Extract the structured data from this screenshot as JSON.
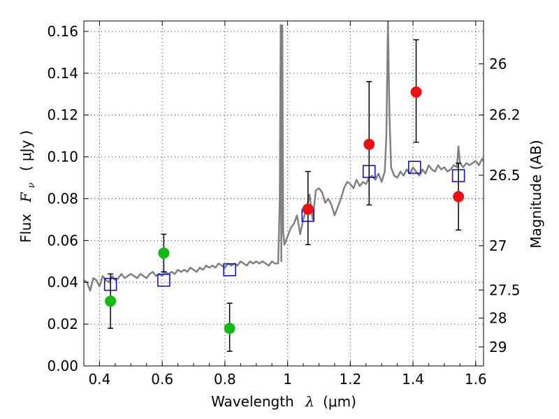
{
  "chart_data": {
    "type": "scatter",
    "title": "",
    "xlabel": "Wavelength",
    "xlabel_symbol": "λ",
    "xlabel_unit": "(μm)",
    "ylabel": "Flux",
    "ylabel_symbol": "F",
    "ylabel_sub": "ν",
    "ylabel_unit": "( μJy )",
    "y2label": "Magnitude (AB)",
    "xlim": [
      0.35,
      1.625
    ],
    "ylim": [
      0.0,
      0.165
    ],
    "grid": true,
    "x_ticks": [
      0.4,
      0.6,
      0.8,
      1.0,
      1.2,
      1.4,
      1.6
    ],
    "x_tick_labels": [
      "0.4",
      "0.6",
      "0.8",
      "1",
      "1.2",
      "1.4",
      "1.6"
    ],
    "y_ticks": [
      0.0,
      0.02,
      0.04,
      0.06,
      0.08,
      0.1,
      0.12,
      0.14,
      0.16
    ],
    "y_tick_labels": [
      "0.00",
      "0.02",
      "0.04",
      "0.06",
      "0.08",
      "0.10",
      "0.12",
      "0.14",
      "0.16"
    ],
    "y2_ticks": [
      {
        "flux": 0.1445,
        "label": "26"
      },
      {
        "flux": 0.12,
        "label": "26.2"
      },
      {
        "flux": 0.0912,
        "label": "26.5"
      },
      {
        "flux": 0.0575,
        "label": "27"
      },
      {
        "flux": 0.0363,
        "label": "27.5"
      },
      {
        "flux": 0.0229,
        "label": "28"
      },
      {
        "flux": 0.0091,
        "label": "29"
      }
    ],
    "colors": {
      "model": "#808080",
      "green": "#11bb11",
      "red": "#ee1111",
      "square": "#1111cc",
      "errorbar": "#000000"
    },
    "series": [
      {
        "name": "model spectrum",
        "type": "line",
        "x": [
          0.35,
          0.36,
          0.37,
          0.38,
          0.39,
          0.4,
          0.41,
          0.42,
          0.43,
          0.44,
          0.45,
          0.46,
          0.47,
          0.48,
          0.49,
          0.5,
          0.51,
          0.52,
          0.53,
          0.54,
          0.55,
          0.56,
          0.57,
          0.58,
          0.59,
          0.6,
          0.61,
          0.62,
          0.63,
          0.64,
          0.65,
          0.66,
          0.67,
          0.68,
          0.69,
          0.7,
          0.71,
          0.72,
          0.73,
          0.74,
          0.75,
          0.76,
          0.77,
          0.78,
          0.79,
          0.8,
          0.81,
          0.82,
          0.83,
          0.84,
          0.85,
          0.86,
          0.87,
          0.88,
          0.89,
          0.9,
          0.91,
          0.92,
          0.93,
          0.94,
          0.95,
          0.96,
          0.97,
          0.975,
          0.978,
          0.98,
          0.983,
          0.986,
          0.99,
          1.0,
          1.01,
          1.02,
          1.03,
          1.04,
          1.05,
          1.06,
          1.07,
          1.08,
          1.09,
          1.1,
          1.11,
          1.12,
          1.13,
          1.14,
          1.15,
          1.16,
          1.17,
          1.18,
          1.19,
          1.2,
          1.21,
          1.22,
          1.23,
          1.24,
          1.25,
          1.26,
          1.27,
          1.28,
          1.29,
          1.3,
          1.31,
          1.315,
          1.32,
          1.325,
          1.33,
          1.34,
          1.35,
          1.36,
          1.37,
          1.38,
          1.39,
          1.4,
          1.41,
          1.42,
          1.43,
          1.44,
          1.45,
          1.46,
          1.47,
          1.48,
          1.49,
          1.5,
          1.51,
          1.52,
          1.53,
          1.54,
          1.545,
          1.55,
          1.56,
          1.57,
          1.58,
          1.59,
          1.6,
          1.61,
          1.62,
          1.625
        ],
        "y": [
          0.041,
          0.04,
          0.036,
          0.042,
          0.041,
          0.038,
          0.043,
          0.041,
          0.04,
          0.043,
          0.041,
          0.042,
          0.044,
          0.042,
          0.043,
          0.044,
          0.043,
          0.042,
          0.044,
          0.043,
          0.042,
          0.044,
          0.045,
          0.043,
          0.044,
          0.043,
          0.045,
          0.044,
          0.045,
          0.044,
          0.046,
          0.045,
          0.046,
          0.045,
          0.047,
          0.046,
          0.045,
          0.047,
          0.046,
          0.048,
          0.047,
          0.048,
          0.047,
          0.049,
          0.048,
          0.047,
          0.049,
          0.048,
          0.049,
          0.048,
          0.05,
          0.049,
          0.048,
          0.05,
          0.049,
          0.05,
          0.049,
          0.05,
          0.049,
          0.048,
          0.05,
          0.049,
          0.049,
          0.08,
          0.163,
          0.05,
          0.163,
          0.064,
          0.058,
          0.062,
          0.066,
          0.068,
          0.072,
          0.063,
          0.07,
          0.075,
          0.082,
          0.07,
          0.084,
          0.085,
          0.083,
          0.078,
          0.08,
          0.077,
          0.072,
          0.076,
          0.08,
          0.085,
          0.088,
          0.087,
          0.085,
          0.089,
          0.086,
          0.088,
          0.087,
          0.09,
          0.091,
          0.089,
          0.092,
          0.088,
          0.093,
          0.11,
          0.165,
          0.12,
          0.095,
          0.091,
          0.09,
          0.093,
          0.091,
          0.094,
          0.092,
          0.095,
          0.093,
          0.091,
          0.094,
          0.092,
          0.096,
          0.094,
          0.093,
          0.096,
          0.094,
          0.095,
          0.093,
          0.094,
          0.096,
          0.095,
          0.105,
          0.097,
          0.095,
          0.097,
          0.096,
          0.097,
          0.098,
          0.096,
          0.099,
          0.098
        ]
      },
      {
        "name": "green points",
        "type": "scatter",
        "marker": "circle",
        "points": [
          {
            "x": 0.435,
            "y": 0.031,
            "err_lo": 0.018,
            "err_hi": 0.044
          },
          {
            "x": 0.605,
            "y": 0.054,
            "err_lo": 0.045,
            "err_hi": 0.063
          },
          {
            "x": 0.815,
            "y": 0.018,
            "err_lo": 0.007,
            "err_hi": 0.03
          }
        ]
      },
      {
        "name": "red points",
        "type": "scatter",
        "marker": "circle",
        "points": [
          {
            "x": 1.065,
            "y": 0.075,
            "err_lo": 0.058,
            "err_hi": 0.093
          },
          {
            "x": 1.26,
            "y": 0.106,
            "err_lo": 0.077,
            "err_hi": 0.136
          },
          {
            "x": 1.41,
            "y": 0.131,
            "err_lo": 0.107,
            "err_hi": 0.156
          },
          {
            "x": 1.545,
            "y": 0.081,
            "err_lo": 0.065,
            "err_hi": 0.097
          }
        ]
      },
      {
        "name": "model photometry",
        "type": "scatter",
        "marker": "square-open",
        "points": [
          {
            "x": 0.435,
            "y": 0.039
          },
          {
            "x": 0.605,
            "y": 0.041
          },
          {
            "x": 0.815,
            "y": 0.046
          },
          {
            "x": 1.065,
            "y": 0.072
          },
          {
            "x": 1.26,
            "y": 0.093
          },
          {
            "x": 1.405,
            "y": 0.095
          },
          {
            "x": 1.545,
            "y": 0.091
          }
        ]
      }
    ]
  }
}
